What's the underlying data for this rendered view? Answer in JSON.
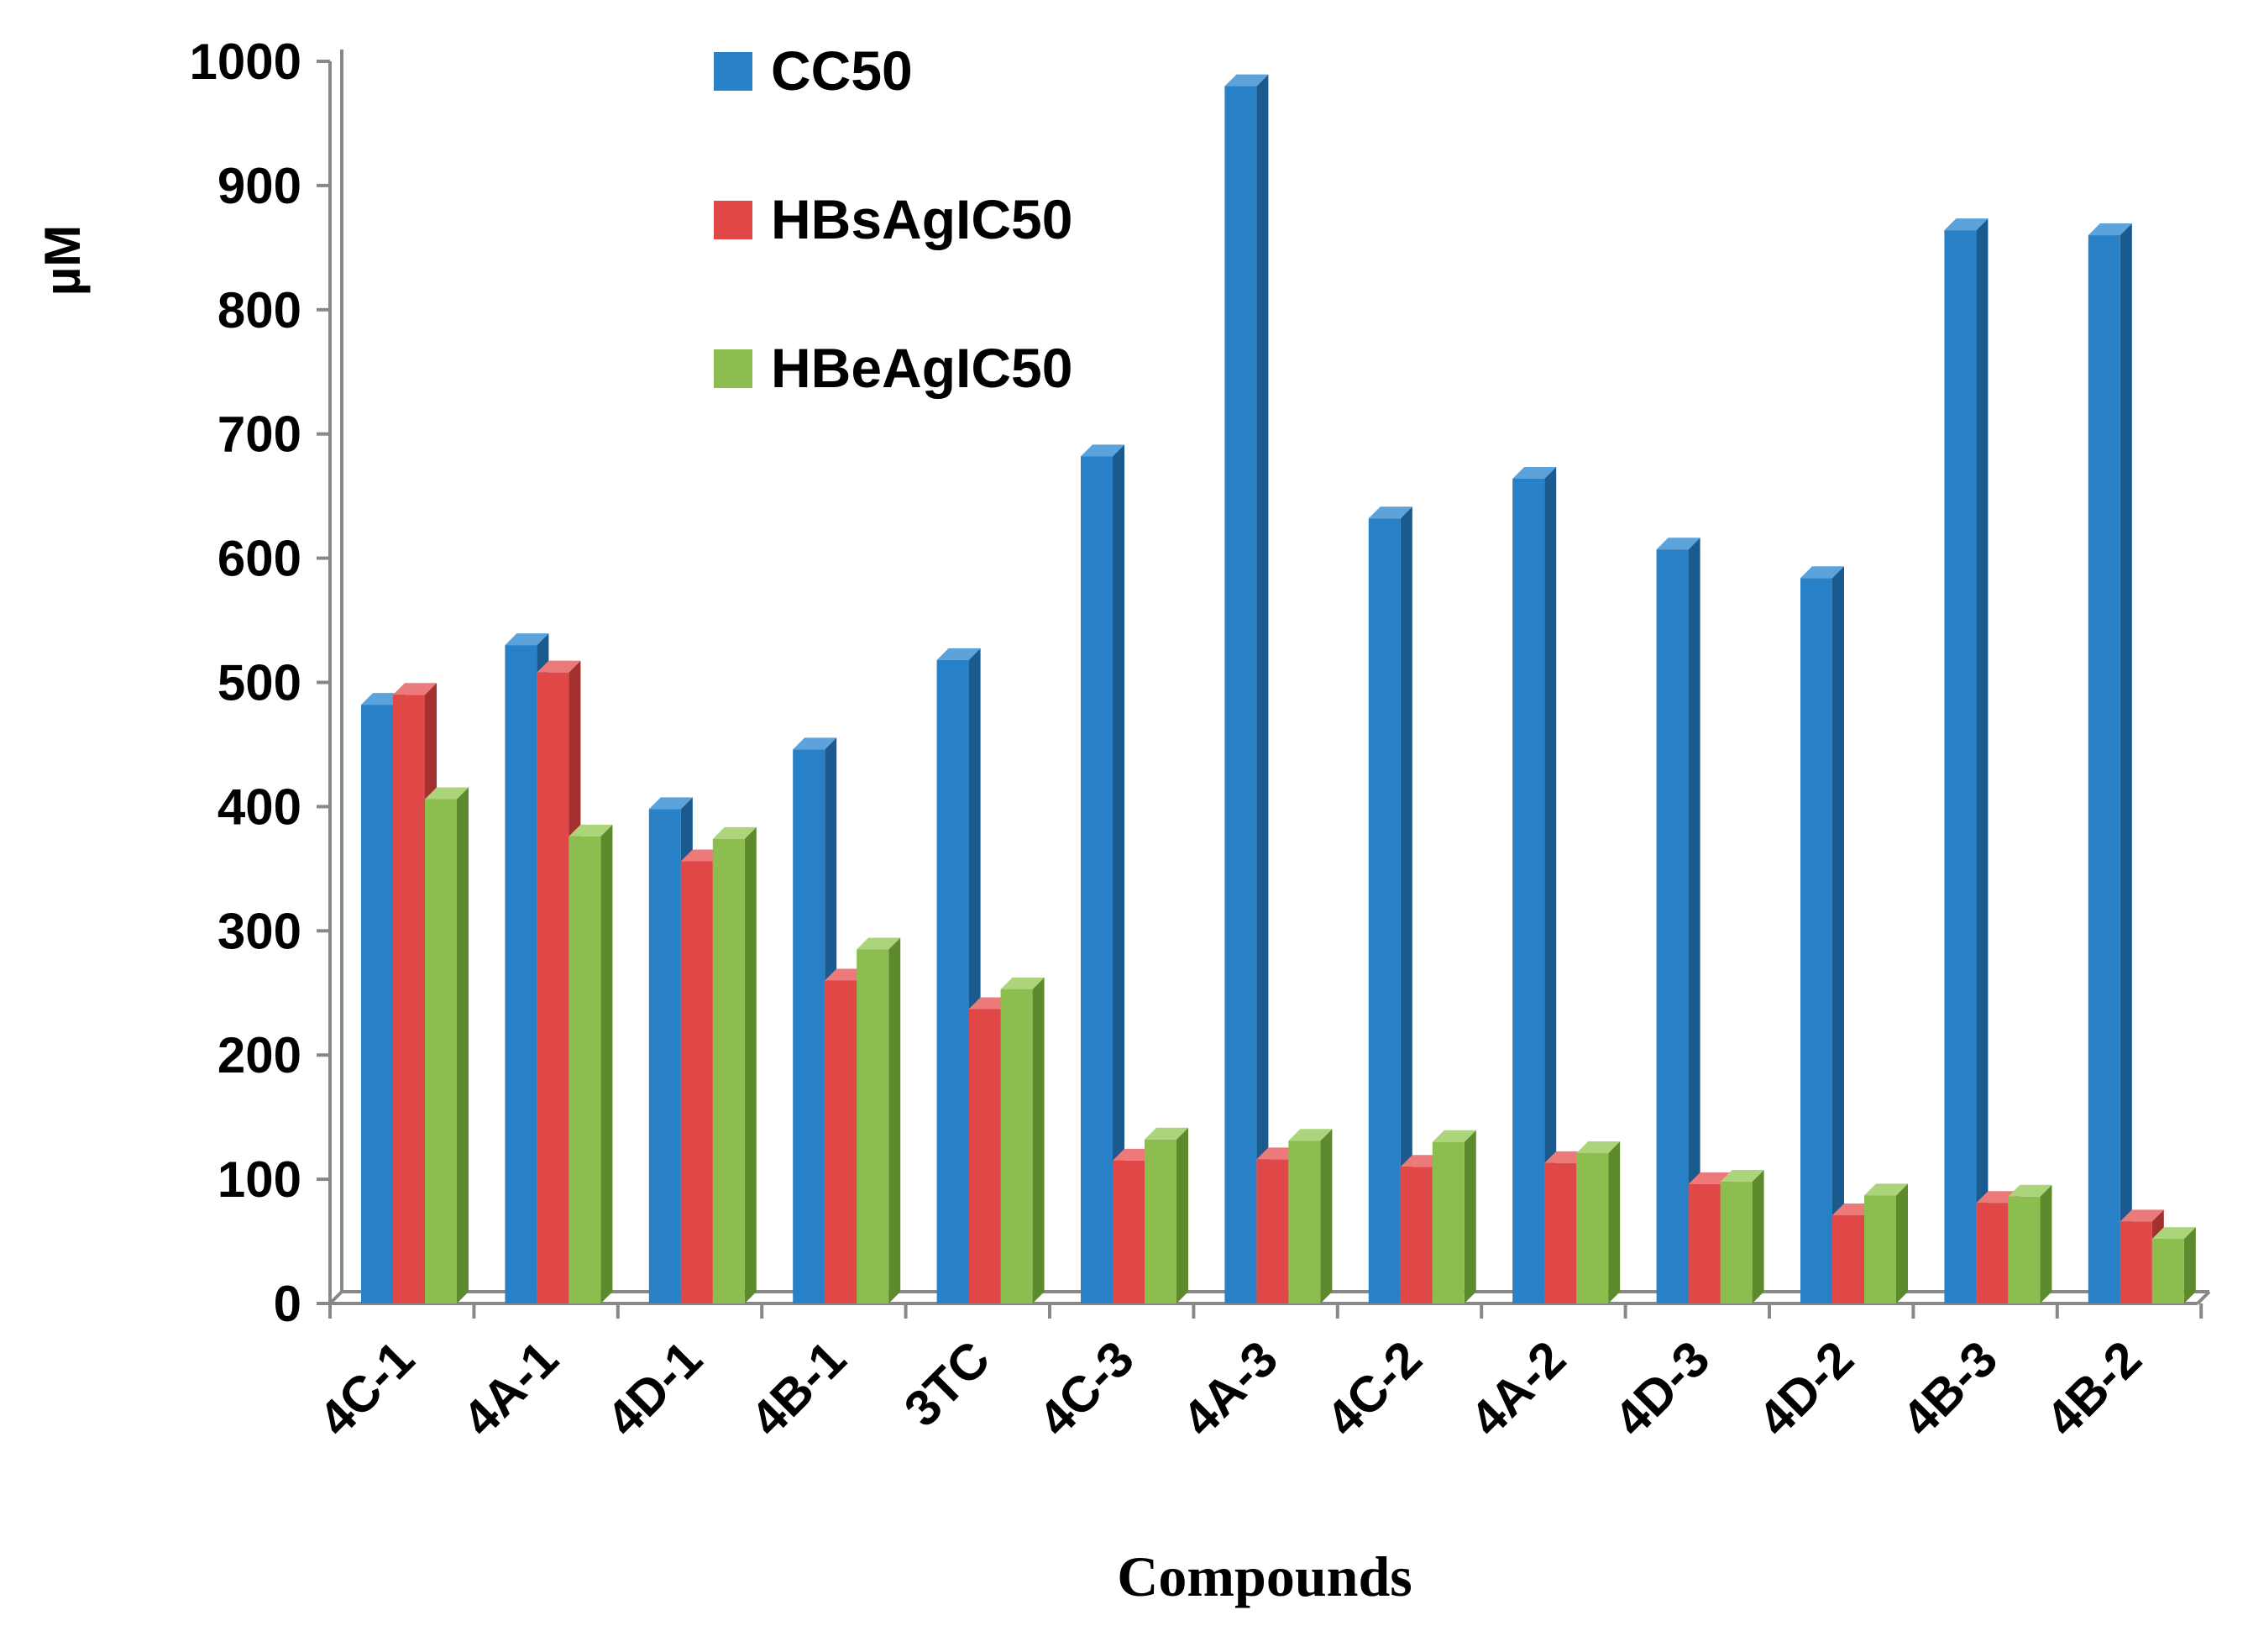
{
  "chart_data": {
    "type": "bar",
    "title": "",
    "xlabel": "Compounds",
    "ylabel": "µM",
    "ylim": [
      0,
      1000
    ],
    "yticks": [
      0,
      100,
      200,
      300,
      400,
      500,
      600,
      700,
      800,
      900,
      1000
    ],
    "ytick_labels": [
      "0",
      "100",
      "200",
      "300",
      "400",
      "500",
      "600",
      "700",
      "800",
      "900",
      "1000"
    ],
    "grid": false,
    "legend_position": "top-center",
    "categories": [
      "4C-1",
      "4A-1",
      "4D-1",
      "4B-1",
      "3TC",
      "4C-3",
      "4A-3",
      "4C-2",
      "4A-2",
      "4D-3",
      "4D-2",
      "4B-3",
      "4B-2"
    ],
    "series": [
      {
        "name": "CC50",
        "color": "#2880C6",
        "side_color": "#1A5A8E",
        "top_color": "#5CA3DC",
        "values": [
          482,
          530,
          398,
          446,
          518,
          682,
          980,
          632,
          664,
          607,
          584,
          864,
          860
        ]
      },
      {
        "name": "HBsAgIC50",
        "color": "#E04848",
        "side_color": "#A53030",
        "top_color": "#EC7A7A",
        "values": [
          490,
          508,
          356,
          260,
          237,
          115,
          116,
          110,
          113,
          96,
          71,
          81,
          66
        ]
      },
      {
        "name": "HBeAgIC50",
        "color": "#8BBE4E",
        "side_color": "#5E8A2E",
        "top_color": "#ACD47A",
        "values": [
          406,
          376,
          374,
          285,
          253,
          132,
          131,
          130,
          121,
          98,
          87,
          86,
          52
        ]
      }
    ]
  }
}
